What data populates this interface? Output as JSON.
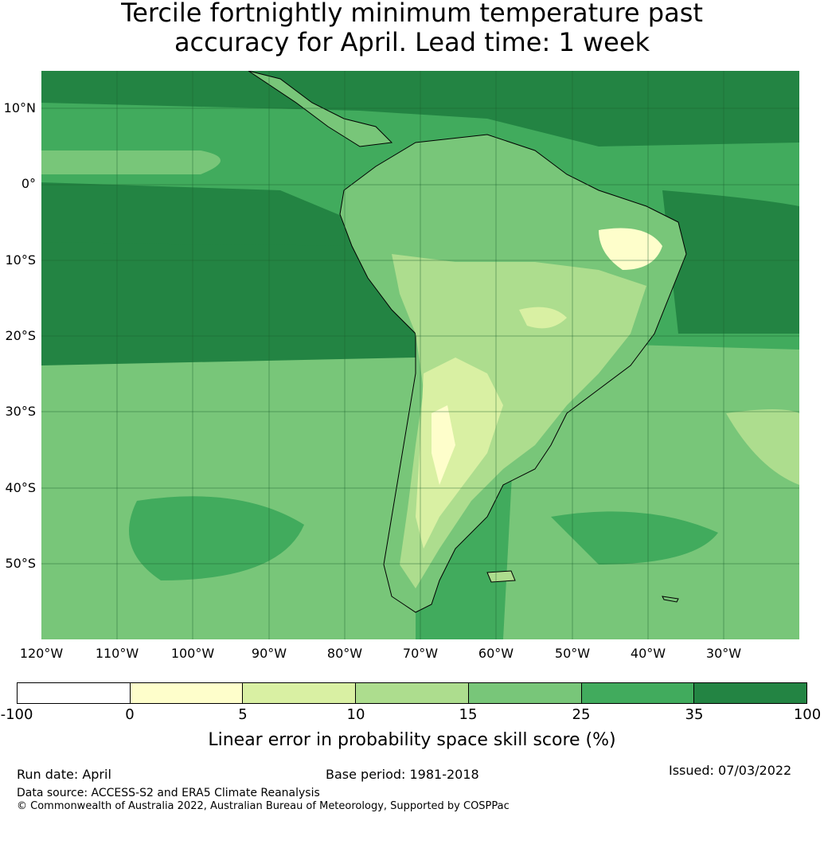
{
  "title": {
    "line1": "Tercile fortnightly minimum temperature past",
    "line2": "accuracy for April. Lead time: 1 week"
  },
  "map": {
    "lat_labels": [
      "10°N",
      "0°",
      "10°S",
      "20°S",
      "30°S",
      "40°S",
      "50°S"
    ],
    "lon_labels": [
      "120°W",
      "110°W",
      "100°W",
      "90°W",
      "80°W",
      "70°W",
      "60°W",
      "50°W",
      "40°W",
      "30°W"
    ],
    "extent": {
      "lon": [
        -120,
        -20
      ],
      "lat": [
        -60,
        15
      ]
    }
  },
  "colorbar": {
    "ticks": [
      "-100",
      "0",
      "5",
      "10",
      "15",
      "25",
      "35",
      "100"
    ],
    "colors": [
      "#ffffff",
      "#fefecb",
      "#d9f0a3",
      "#addd8e",
      "#78c679",
      "#41ab5d",
      "#238443"
    ],
    "label": "Linear error in probability space skill score (%)"
  },
  "footer": {
    "run_date": "Run date: April",
    "base_period": "Base period: 1981-2018",
    "issued": "Issued: 07/03/2022",
    "data_source": "Data source: ACCESS-S2 and ERA5 Climate Reanalysis",
    "copyright": "© Commonwealth of Australia 2022, Australian Bureau of Meteorology, Supported by COSPPac"
  }
}
